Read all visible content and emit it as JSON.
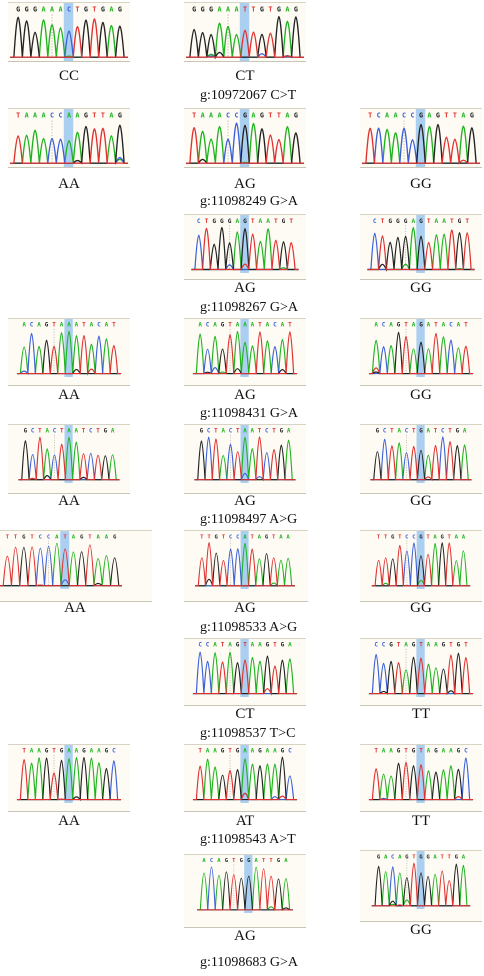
{
  "colors": {
    "A": "#1fb31f",
    "C": "#3b5fd9",
    "G": "#222222",
    "T": "#e03030",
    "highlight": "#9cc7f0"
  },
  "panels": [
    {
      "id": "r1c1",
      "seq": "GGGAAACTGTGAG",
      "genotype": "CC"
    },
    {
      "id": "r1c2",
      "seq": "GGGAAATTGTGAG",
      "genotype": "CT"
    },
    {
      "id": "r2c1",
      "seq": "TAAACCAAGTTAG",
      "genotype": "AA"
    },
    {
      "id": "r2c2",
      "seq": "TAAACCGAGTTAG",
      "genotype": "AG"
    },
    {
      "id": "r2c3",
      "seq": "TCAACCGAGTTAG",
      "genotype": "GG"
    },
    {
      "id": "r3c2",
      "seq": "CTGGGAGTAATGT",
      "genotype": "AG"
    },
    {
      "id": "r3c3",
      "seq": "CTGGGAGTAATGT",
      "genotype": "GG"
    },
    {
      "id": "r4c1",
      "seq": "ACAGTAAATACAT",
      "genotype": "AA"
    },
    {
      "id": "r4c2",
      "seq": "ACAGTAAATACAT",
      "genotype": "AG"
    },
    {
      "id": "r4c3",
      "seq": "ACAGTAGATACAT",
      "genotype": "GG"
    },
    {
      "id": "r5c1",
      "seq": "GCTACTAATCTGA",
      "genotype": "AA"
    },
    {
      "id": "r5c2",
      "seq": "GCTACTAATCTGA",
      "genotype": "AG"
    },
    {
      "id": "r5c3",
      "seq": "GCTACTGATCTGA",
      "genotype": "GG"
    },
    {
      "id": "r6c1",
      "seq": "TTGTCCATAGTAAG",
      "genotype": "AA"
    },
    {
      "id": "r6c2",
      "seq": "TTGTCCATAGTAA",
      "genotype": "AG"
    },
    {
      "id": "r6c3",
      "seq": "TTGTCCGTAGTAA",
      "genotype": "GG"
    },
    {
      "id": "r7c2",
      "seq": "CCATAGTAAGTGA",
      "genotype": "CT"
    },
    {
      "id": "r7c3",
      "seq": "CCGTAGTAAGTGT",
      "genotype": "TT"
    },
    {
      "id": "r8c1",
      "seq": "TAAGTGAAGAAGC",
      "genotype": "AA"
    },
    {
      "id": "r8c2",
      "seq": "TAAGTGAAGAAGC",
      "genotype": "AT"
    },
    {
      "id": "r8c3",
      "seq": "TAAGTGTAGAAGC",
      "genotype": "TT"
    },
    {
      "id": "r9c2",
      "seq": "ACAGTGGATTGA",
      "genotype": "AG"
    },
    {
      "id": "r9c3",
      "seq": "GACAGTGGATTGA",
      "genotype": "GG"
    }
  ],
  "snps": [
    "g:10972067 C>T",
    "g:11098249 G>A",
    "g:11098267 G>A",
    "g:11098431 G>A",
    "g:11098497 A>G",
    "g:11098533 A>G",
    "g:11098537 T>C",
    "g:11098543 A>T",
    "g:11098683 G>A"
  ]
}
